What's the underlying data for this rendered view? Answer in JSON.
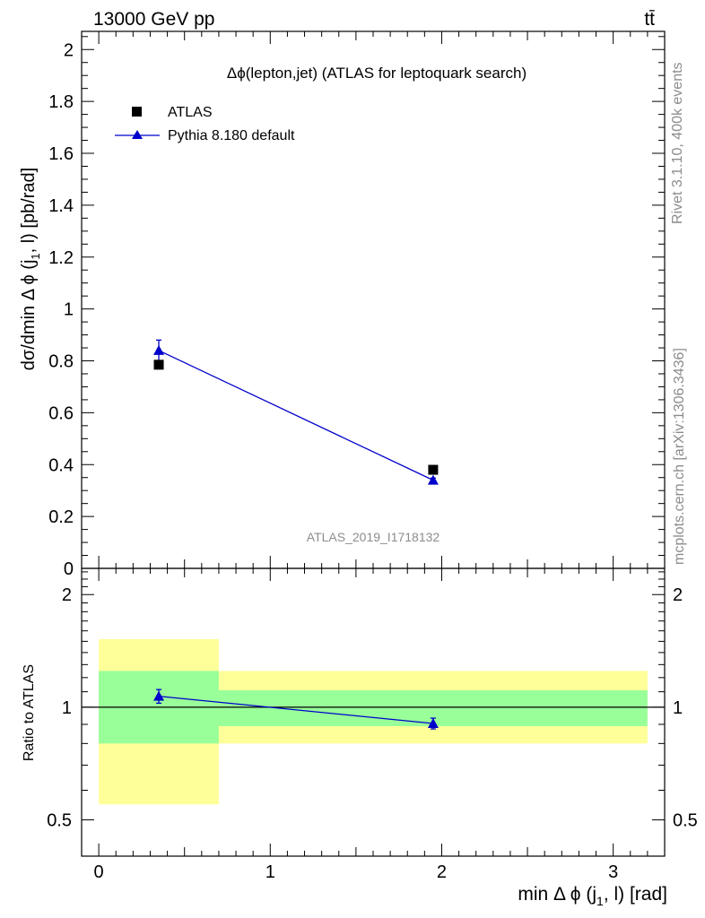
{
  "header": {
    "energy_label": "13000 GeV pp",
    "process_label": "tt̄"
  },
  "side_labels": {
    "rivet": "Rivet 3.1.10,  400k events",
    "mcplots": "mcplots.cern.ch [arXiv:1306.3436]"
  },
  "chart_data": [
    {
      "type": "scatter",
      "panel": "main",
      "title": "Δϕ(lepton,jet) (ATLAS for leptoquark search)",
      "watermark": "ATLAS_2019_I1718132",
      "ylabel": "dσ/dmin Δ ϕ (j1, l) [pb/rad]",
      "xlim": [
        -0.1,
        3.3
      ],
      "ylim": [
        0,
        2.07
      ],
      "yticks": [
        "0",
        "0.2",
        "0.4",
        "0.6",
        "0.8",
        "1",
        "1.2",
        "1.4",
        "1.6",
        "1.8",
        "2"
      ],
      "legend_position": "top-left",
      "series": [
        {
          "name": "ATLAS",
          "color": "#000000",
          "marker": "square",
          "x": [
            0.35,
            1.95
          ],
          "y": [
            0.785,
            0.38
          ]
        },
        {
          "name": "Pythia 8.180 default",
          "color": "#0000cc",
          "marker": "triangle",
          "x": [
            0.35,
            1.95
          ],
          "y": [
            0.84,
            0.34
          ],
          "yerr": [
            0.04,
            0.008
          ]
        }
      ]
    },
    {
      "type": "scatter",
      "panel": "ratio",
      "ylabel": "Ratio to ATLAS",
      "xlabel": "min Δ ϕ (j1, l) [rad]",
      "xlim": [
        -0.1,
        3.3
      ],
      "ylim": [
        0.4,
        2.35
      ],
      "yscale": "log",
      "yticks": [
        "0.5",
        "1",
        "2"
      ],
      "xticks": [
        "0",
        "1",
        "2",
        "3"
      ],
      "reference_line": 1,
      "bands": [
        {
          "x_range": [
            0,
            0.7
          ],
          "yellow": [
            0.55,
            1.52
          ],
          "green": [
            0.8,
            1.25
          ]
        },
        {
          "x_range": [
            0.7,
            3.2
          ],
          "yellow": [
            0.8,
            1.25
          ],
          "green": [
            0.89,
            1.11
          ]
        }
      ],
      "series": [
        {
          "name": "Pythia 8.180 default",
          "color": "#0000cc",
          "marker": "triangle",
          "x": [
            0.35,
            1.95
          ],
          "y": [
            1.07,
            0.905
          ],
          "yerr": [
            0.045,
            0.03
          ]
        }
      ]
    }
  ]
}
